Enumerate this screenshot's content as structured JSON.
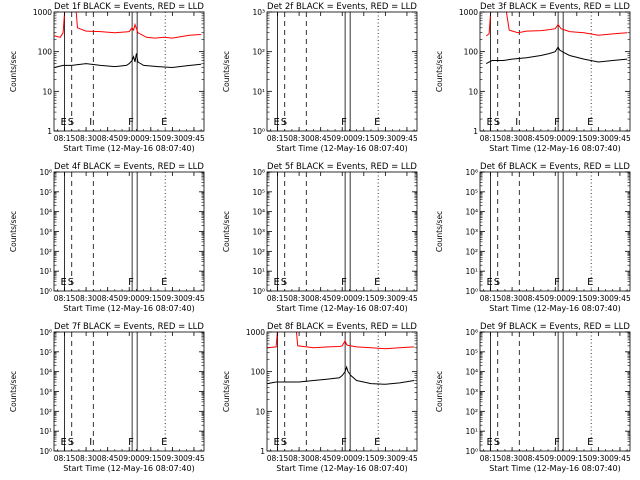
{
  "page": {
    "background": "#ffffff",
    "colors": {
      "axis": "#000000",
      "events": "#000000",
      "lld": "#ff0000"
    }
  },
  "common": {
    "xlabel": "Start Time (12-May-16 08:07:40)",
    "ylabel": "Counts/sec",
    "x_ticks": [
      "08:15",
      "08:30",
      "08:45",
      "09:00",
      "09:15",
      "09:30",
      "09:45"
    ],
    "x_tick_minutes": [
      15,
      30,
      45,
      60,
      75,
      90,
      105
    ],
    "x_range_minutes": [
      7.67,
      112
    ],
    "markers": [
      {
        "label": "E",
        "minute": 15.0,
        "style": "solid"
      },
      {
        "label": "S",
        "minute": 20.0,
        "style": "dashed"
      },
      {
        "label": "I",
        "minute": 35.0,
        "style": "dashed"
      },
      {
        "label": "F",
        "minute": 62.0,
        "style": "solid"
      },
      {
        "label": "F",
        "minute": 65.5,
        "style": "solid"
      },
      {
        "label": "E",
        "minute": 85.0,
        "style": "dotted"
      }
    ]
  },
  "chart_data": [
    {
      "type": "line",
      "title": "Det 1f BLACK = Events, RED = LLD",
      "scale": "log",
      "ylim": [
        1,
        1000
      ],
      "y_ticks": [
        "1",
        "10",
        "100",
        "1000"
      ],
      "y_tick_values": [
        1,
        10,
        100,
        1000
      ],
      "marker_labels": [
        "E",
        "S",
        "I",
        "F",
        "",
        "E"
      ],
      "series": [
        {
          "color": "#ff0000",
          "points": [
            [
              8,
              250
            ],
            [
              12,
              230
            ],
            [
              14,
              300
            ],
            [
              16,
              3000
            ],
            [
              22,
              3000
            ],
            [
              24,
              400
            ],
            [
              30,
              330
            ],
            [
              40,
              320
            ],
            [
              50,
              300
            ],
            [
              60,
              320
            ],
            [
              62,
              400
            ],
            [
              63,
              350
            ],
            [
              64,
              480
            ],
            [
              66,
              300
            ],
            [
              72,
              230
            ],
            [
              78,
              220
            ],
            [
              84,
              230
            ],
            [
              90,
              220
            ],
            [
              96,
              240
            ],
            [
              102,
              260
            ],
            [
              108,
              270
            ],
            [
              110,
              270
            ]
          ]
        },
        {
          "color": "#000000",
          "points": [
            [
              8,
              40
            ],
            [
              14,
              45
            ],
            [
              20,
              45
            ],
            [
              30,
              50
            ],
            [
              40,
              45
            ],
            [
              50,
              42
            ],
            [
              58,
              45
            ],
            [
              60,
              50
            ],
            [
              62,
              60
            ],
            [
              63,
              75
            ],
            [
              64,
              55
            ],
            [
              65,
              90
            ],
            [
              66,
              55
            ],
            [
              70,
              45
            ],
            [
              80,
              42
            ],
            [
              90,
              40
            ],
            [
              100,
              44
            ],
            [
              110,
              48
            ]
          ]
        }
      ]
    },
    {
      "type": "line",
      "title": "Det 2f BLACK = Events, RED = LLD",
      "scale": "log",
      "ylim": [
        1,
        1000
      ],
      "y_ticks": [
        "10⁰",
        "10¹",
        "10²",
        "10³"
      ],
      "y_tick_values": [
        1,
        10,
        100,
        1000
      ],
      "marker_labels": [
        "E",
        "S",
        "",
        "F",
        "",
        "E"
      ],
      "series": []
    },
    {
      "type": "line",
      "title": "Det 3f BLACK = Events, RED = LLD",
      "scale": "log",
      "ylim": [
        1,
        1000
      ],
      "y_ticks": [
        "1",
        "10",
        "100",
        "1000"
      ],
      "y_tick_values": [
        1,
        10,
        100,
        1000
      ],
      "marker_labels": [
        "E",
        "S",
        "I",
        "F",
        "",
        "E"
      ],
      "series": [
        {
          "color": "#ff0000",
          "points": [
            [
              12,
              250
            ],
            [
              14,
              280
            ],
            [
              16,
              3000
            ],
            [
              24,
              3000
            ],
            [
              28,
              350
            ],
            [
              34,
              300
            ],
            [
              40,
              330
            ],
            [
              50,
              340
            ],
            [
              56,
              360
            ],
            [
              60,
              380
            ],
            [
              62,
              480
            ],
            [
              64,
              380
            ],
            [
              70,
              320
            ],
            [
              80,
              300
            ],
            [
              90,
              260
            ],
            [
              100,
              280
            ],
            [
              110,
              300
            ]
          ]
        },
        {
          "color": "#000000",
          "points": [
            [
              12,
              50
            ],
            [
              16,
              60
            ],
            [
              24,
              60
            ],
            [
              30,
              65
            ],
            [
              40,
              70
            ],
            [
              50,
              80
            ],
            [
              56,
              90
            ],
            [
              60,
              100
            ],
            [
              62,
              130
            ],
            [
              63,
              110
            ],
            [
              66,
              95
            ],
            [
              70,
              80
            ],
            [
              80,
              65
            ],
            [
              90,
              55
            ],
            [
              100,
              60
            ],
            [
              110,
              65
            ]
          ]
        }
      ]
    },
    {
      "type": "line",
      "title": "Det 4f BLACK = Events, RED = LLD",
      "scale": "log",
      "ylim": [
        1,
        1000000
      ],
      "y_ticks": [
        "10⁰",
        "10¹",
        "10²",
        "10³",
        "10⁴",
        "10⁵",
        "10⁶"
      ],
      "y_tick_values": [
        1,
        10,
        100,
        1000,
        10000,
        100000,
        1000000
      ],
      "marker_labels": [
        "E",
        "S",
        "",
        "F",
        "",
        "E"
      ],
      "series": []
    },
    {
      "type": "line",
      "title": "Det 5f BLACK = Events, RED = LLD",
      "scale": "log",
      "ylim": [
        1,
        1000000
      ],
      "y_ticks": [
        "10⁰",
        "10¹",
        "10²",
        "10³",
        "10⁴",
        "10⁵",
        "10⁶"
      ],
      "y_tick_values": [
        1,
        10,
        100,
        1000,
        10000,
        100000,
        1000000
      ],
      "marker_labels": [
        "E",
        "S",
        "",
        "F",
        "",
        "E"
      ],
      "series": []
    },
    {
      "type": "line",
      "title": "Det 6f BLACK = Events, RED = LLD",
      "scale": "log",
      "ylim": [
        1,
        1000000
      ],
      "y_ticks": [
        "10⁰",
        "10¹",
        "10²",
        "10³",
        "10⁴",
        "10⁵",
        "10⁶"
      ],
      "y_tick_values": [
        1,
        10,
        100,
        1000,
        10000,
        100000,
        1000000
      ],
      "marker_labels": [
        "E",
        "S",
        "",
        "F",
        "",
        "E"
      ],
      "series": []
    },
    {
      "type": "line",
      "title": "Det 7f BLACK = Events, RED = LLD",
      "scale": "log",
      "ylim": [
        1,
        1000000
      ],
      "y_ticks": [
        "10⁰",
        "10¹",
        "10²",
        "10³",
        "10⁴",
        "10⁵",
        "10⁶"
      ],
      "y_tick_values": [
        1,
        10,
        100,
        1000,
        10000,
        100000,
        1000000
      ],
      "marker_labels": [
        "E",
        "S",
        "I",
        "F",
        "",
        "E"
      ],
      "series": []
    },
    {
      "type": "line",
      "title": "Det 8f BLACK = Events, RED = LLD",
      "scale": "log",
      "ylim": [
        1,
        1000
      ],
      "y_ticks": [
        "1",
        "10",
        "100",
        "1000"
      ],
      "y_tick_values": [
        1,
        10,
        100,
        1000
      ],
      "marker_labels": [
        "E",
        "S",
        "",
        "F",
        "",
        "E"
      ],
      "series": [
        {
          "color": "#ff0000",
          "points": [
            [
              8,
              400
            ],
            [
              14,
              420
            ],
            [
              16,
              3000
            ],
            [
              27,
              3000
            ],
            [
              29,
              450
            ],
            [
              40,
              400
            ],
            [
              50,
              420
            ],
            [
              58,
              430
            ],
            [
              60,
              450
            ],
            [
              62,
              600
            ],
            [
              63,
              480
            ],
            [
              64,
              460
            ],
            [
              70,
              420
            ],
            [
              80,
              400
            ],
            [
              90,
              380
            ],
            [
              100,
              400
            ],
            [
              110,
              420
            ]
          ]
        },
        {
          "color": "#000000",
          "points": [
            [
              8,
              50
            ],
            [
              14,
              55
            ],
            [
              20,
              55
            ],
            [
              30,
              55
            ],
            [
              40,
              60
            ],
            [
              50,
              65
            ],
            [
              58,
              70
            ],
            [
              60,
              80
            ],
            [
              62,
              100
            ],
            [
              63,
              130
            ],
            [
              64,
              100
            ],
            [
              66,
              80
            ],
            [
              70,
              60
            ],
            [
              80,
              50
            ],
            [
              90,
              48
            ],
            [
              100,
              52
            ],
            [
              110,
              60
            ]
          ]
        }
      ]
    },
    {
      "type": "line",
      "title": "Det 9f BLACK = Events, RED = LLD",
      "scale": "log",
      "ylim": [
        1,
        1000000
      ],
      "y_ticks": [
        "10⁰",
        "10¹",
        "10²",
        "10³",
        "10⁴",
        "10⁵",
        "10⁶"
      ],
      "y_tick_values": [
        1,
        10,
        100,
        1000,
        10000,
        100000,
        1000000
      ],
      "marker_labels": [
        "E",
        "S",
        "",
        "F",
        "",
        "E"
      ],
      "series": []
    }
  ]
}
